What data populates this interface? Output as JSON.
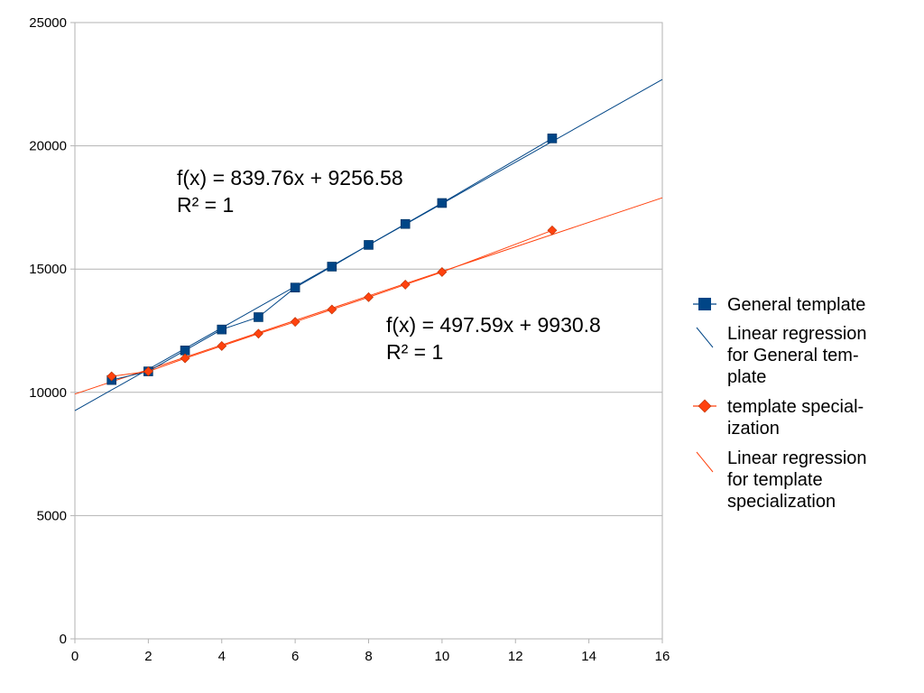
{
  "chart_data": {
    "type": "scatter",
    "title": "",
    "xlabel": "",
    "ylabel": "",
    "xlim": [
      0,
      16
    ],
    "ylim": [
      0,
      25000
    ],
    "xticks": [
      "0",
      "2",
      "4",
      "6",
      "8",
      "10",
      "12",
      "14",
      "16"
    ],
    "yticks": [
      "0",
      "5000",
      "10000",
      "15000",
      "20000",
      "25000"
    ],
    "grid": "horizontal",
    "legend_position": "right",
    "series": [
      {
        "name": "General template",
        "marker": "square",
        "color": "#004586",
        "x": [
          1,
          2,
          3,
          4,
          5,
          6,
          7,
          8,
          9,
          10,
          13
        ],
        "y": [
          10500,
          10850,
          11700,
          12550,
          13050,
          14250,
          15100,
          15980,
          16830,
          17680,
          20300
        ]
      },
      {
        "name": "template special-ization",
        "marker": "diamond",
        "color": "#ff420e",
        "x": [
          1,
          2,
          3,
          4,
          5,
          6,
          7,
          8,
          9,
          10,
          13
        ],
        "y": [
          10650,
          10850,
          11380,
          11880,
          12380,
          12860,
          13360,
          13860,
          14370,
          14880,
          16570
        ]
      }
    ],
    "regressions": [
      {
        "name": "Linear regression for General tem-plate",
        "color": "#004586",
        "slope": 839.76,
        "intercept": 9256.58,
        "equation": "f(x) = 839.76x + 9256.58",
        "r2": "R² = 1"
      },
      {
        "name": "Linear regression for template specialization",
        "color": "#ff420e",
        "slope": 497.59,
        "intercept": 9930.8,
        "equation": "f(x) = 497.59x + 9930.8",
        "r2": "R² = 1"
      }
    ],
    "legend": [
      {
        "lines": [
          "General template"
        ],
        "kind": "marker-square",
        "color": "#004586"
      },
      {
        "lines": [
          "Linear regression",
          "for General tem-",
          "plate"
        ],
        "kind": "line",
        "color": "#004586"
      },
      {
        "lines": [
          "template special-",
          "ization"
        ],
        "kind": "marker-diamond",
        "color": "#ff420e"
      },
      {
        "lines": [
          "Linear regression",
          "for template",
          "specialization"
        ],
        "kind": "line",
        "color": "#ff420e"
      }
    ]
  }
}
